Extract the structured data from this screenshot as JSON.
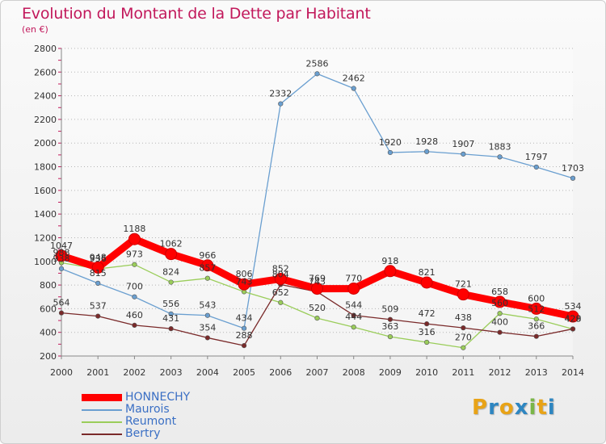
{
  "chart_data": {
    "type": "line",
    "title": "Evolution du Montant de la Dette par Habitant",
    "subtitle": "(en €)",
    "xlabel": "",
    "ylabel": "",
    "x": [
      "2000",
      "2001",
      "2002",
      "2003",
      "2004",
      "2005",
      "2006",
      "2007",
      "2008",
      "2009",
      "2010",
      "2011",
      "2012",
      "2013",
      "2014"
    ],
    "ylim": [
      200,
      2800
    ],
    "yticks": [
      200,
      400,
      600,
      800,
      1000,
      1200,
      1400,
      1600,
      1800,
      2000,
      2200,
      2400,
      2600,
      2800
    ],
    "grid": "horizontal dotted",
    "legend_position": "bottom-left",
    "series": [
      {
        "name": "HONNECHY",
        "color": "#ff0000",
        "width": 9,
        "values": [
          1047,
          948,
          1188,
          1062,
          966,
          806,
          852,
          769,
          770,
          918,
          821,
          721,
          658,
          600,
          534
        ]
      },
      {
        "name": "Maurois",
        "color": "#6a9fd0",
        "width": 1.3,
        "values": [
          938,
          815,
          700,
          556,
          543,
          434,
          2332,
          2586,
          2462,
          1920,
          1928,
          1907,
          1883,
          1797,
          1703
        ]
      },
      {
        "name": "Reumont",
        "color": "#9acd5a",
        "width": 1.3,
        "values": [
          988,
          936,
          973,
          824,
          857,
          743,
          652,
          520,
          444,
          363,
          316,
          270,
          560,
          512,
          428
        ]
      },
      {
        "name": "Bertry",
        "color": "#7a2a2a",
        "width": 1.3,
        "values": [
          564,
          537,
          460,
          431,
          354,
          288,
          804,
          743,
          544,
          509,
          472,
          438,
          400,
          366,
          429
        ]
      }
    ]
  },
  "logo": {
    "letters": [
      "P",
      "r",
      "o",
      "x",
      "i",
      "t",
      "i"
    ],
    "colors": [
      "#e8a317",
      "#2e86c1",
      "#e8a317",
      "#2e86c1",
      "#7ab648",
      "#e8a317",
      "#2e86c1"
    ]
  }
}
